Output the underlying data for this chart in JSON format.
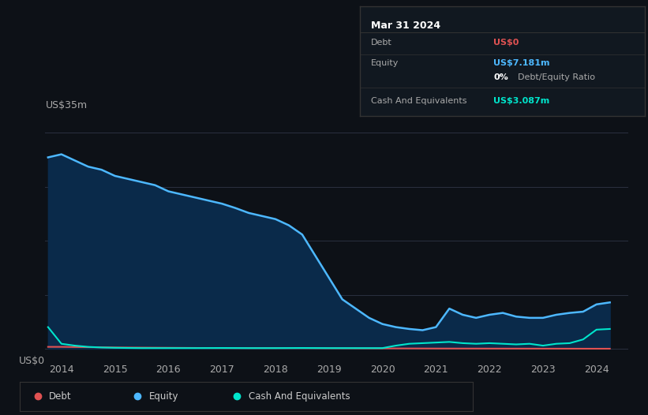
{
  "background_color": "#0d1117",
  "plot_bg_color": "#0d1117",
  "grid_color": "#2a3040",
  "title_box": {
    "date": "Mar 31 2024",
    "debt_label": "Debt",
    "debt_value": "US$0",
    "equity_label": "Equity",
    "equity_value": "US$7.181m",
    "ratio_bold": "0%",
    "ratio_rest": " Debt/Equity Ratio",
    "cash_label": "Cash And Equivalents",
    "cash_value": "US$3.087m",
    "debt_color": "#e05252",
    "equity_color": "#4db8ff",
    "cash_color": "#00e5cc",
    "ratio_bold_color": "#ffffff",
    "ratio_normal_color": "#aaaaaa",
    "label_color": "#aaaaaa",
    "header_color": "#ffffff",
    "box_bg": "#111820",
    "box_border": "#333333"
  },
  "ylabel_text": "US$35m",
  "y0_text": "US$0",
  "xlim": [
    2013.7,
    2024.6
  ],
  "ylim": [
    -2,
    37
  ],
  "xtick_labels": [
    "2014",
    "2015",
    "2016",
    "2017",
    "2018",
    "2019",
    "2020",
    "2021",
    "2022",
    "2023",
    "2024"
  ],
  "xtick_positions": [
    2014,
    2015,
    2016,
    2017,
    2018,
    2019,
    2020,
    2021,
    2022,
    2023,
    2024
  ],
  "grid_y_positions": [
    0,
    8.75,
    17.5,
    26.25,
    35
  ],
  "equity_fill_color": "#0a2a4a",
  "equity_line_color": "#4db8ff",
  "debt_color": "#e05252",
  "cash_color": "#00e5cc",
  "equity_x": [
    2013.75,
    2014.0,
    2014.25,
    2014.5,
    2014.75,
    2015.0,
    2015.25,
    2015.5,
    2015.75,
    2016.0,
    2016.25,
    2016.5,
    2016.75,
    2017.0,
    2017.25,
    2017.5,
    2017.75,
    2018.0,
    2018.25,
    2018.5,
    2018.75,
    2019.0,
    2019.25,
    2019.5,
    2019.75,
    2020.0,
    2020.25,
    2020.5,
    2020.75,
    2021.0,
    2021.25,
    2021.5,
    2021.75,
    2022.0,
    2022.25,
    2022.5,
    2022.75,
    2023.0,
    2023.25,
    2023.5,
    2023.75,
    2024.0,
    2024.25
  ],
  "equity_y": [
    31.0,
    31.5,
    30.5,
    29.5,
    29.0,
    28.0,
    27.5,
    27.0,
    26.5,
    25.5,
    25.0,
    24.5,
    24.0,
    23.5,
    22.8,
    22.0,
    21.5,
    21.0,
    20.0,
    18.5,
    15.0,
    11.5,
    8.0,
    6.5,
    5.0,
    4.0,
    3.5,
    3.2,
    3.0,
    3.5,
    6.5,
    5.5,
    5.0,
    5.5,
    5.8,
    5.2,
    5.0,
    5.0,
    5.5,
    5.8,
    6.0,
    7.181,
    7.5
  ],
  "debt_x": [
    2013.75,
    2014.0,
    2015.0,
    2016.0,
    2017.0,
    2018.0,
    2019.0,
    2020.0,
    2021.0,
    2022.0,
    2023.0,
    2024.0,
    2024.25
  ],
  "debt_y": [
    0.3,
    0.3,
    0.2,
    0.15,
    0.1,
    0.1,
    0.08,
    0.05,
    0.03,
    0.02,
    0.01,
    0.0,
    0.0
  ],
  "cash_x": [
    2013.75,
    2014.0,
    2014.25,
    2014.5,
    2014.75,
    2015.0,
    2015.25,
    2015.5,
    2015.75,
    2016.0,
    2016.5,
    2017.0,
    2017.5,
    2018.0,
    2018.5,
    2019.0,
    2019.5,
    2020.0,
    2020.25,
    2020.5,
    2020.75,
    2021.0,
    2021.25,
    2021.5,
    2021.75,
    2022.0,
    2022.25,
    2022.5,
    2022.75,
    2023.0,
    2023.25,
    2023.5,
    2023.75,
    2024.0,
    2024.25
  ],
  "cash_y": [
    3.5,
    0.8,
    0.5,
    0.3,
    0.2,
    0.15,
    0.12,
    0.1,
    0.1,
    0.1,
    0.1,
    0.12,
    0.1,
    0.1,
    0.12,
    0.1,
    0.1,
    0.1,
    0.5,
    0.8,
    0.9,
    1.0,
    1.1,
    0.9,
    0.8,
    0.9,
    0.8,
    0.7,
    0.8,
    0.5,
    0.8,
    0.9,
    1.5,
    3.087,
    3.2
  ],
  "legend": [
    {
      "label": "Debt",
      "color": "#e05252"
    },
    {
      "label": "Equity",
      "color": "#4db8ff"
    },
    {
      "label": "Cash And Equivalents",
      "color": "#00e5cc"
    }
  ]
}
